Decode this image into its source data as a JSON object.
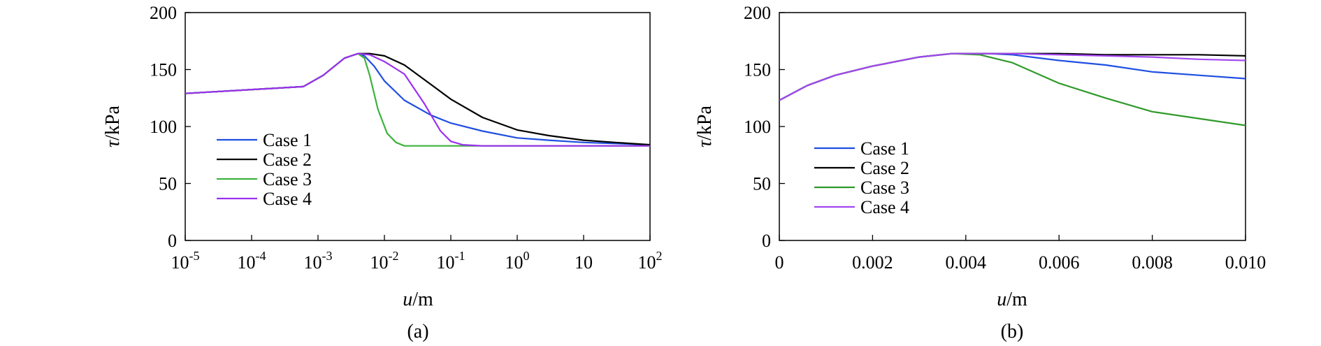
{
  "chart_data": [
    {
      "type": "line",
      "panel_label": "(a)",
      "xlabel": "u/m",
      "ylabel": "τ/kPa",
      "xscale": "log",
      "xlim": [
        1e-05,
        100
      ],
      "ylim": [
        0,
        200
      ],
      "yticks": [
        0,
        50,
        100,
        150,
        200
      ],
      "xticks": [
        {
          "value": 1e-05,
          "base": "10",
          "exp": "-5"
        },
        {
          "value": 0.0001,
          "base": "10",
          "exp": "-4"
        },
        {
          "value": 0.001,
          "base": "10",
          "exp": "-3"
        },
        {
          "value": 0.01,
          "base": "10",
          "exp": "-2"
        },
        {
          "value": 0.1,
          "base": "10",
          "exp": "-1"
        },
        {
          "value": 1,
          "base": "10",
          "exp": "0"
        },
        {
          "value": 10,
          "base": "10",
          "exp": ""
        },
        {
          "value": 100,
          "base": "10",
          "exp": "2"
        }
      ],
      "legend_position": "lower-left",
      "grid": false,
      "series": [
        {
          "name": "Case 1",
          "color": "#1f4fe0",
          "points": [
            [
              1e-05,
              129
            ],
            [
              0.0006,
              135
            ],
            [
              0.0012,
              145
            ],
            [
              0.0025,
              160
            ],
            [
              0.004,
              164
            ],
            [
              0.005,
              162
            ],
            [
              0.007,
              153
            ],
            [
              0.01,
              140
            ],
            [
              0.02,
              123
            ],
            [
              0.05,
              110
            ],
            [
              0.1,
              103
            ],
            [
              0.3,
              96
            ],
            [
              1,
              90
            ],
            [
              3,
              88
            ],
            [
              10,
              86
            ],
            [
              100,
              84
            ]
          ]
        },
        {
          "name": "Case 2",
          "color": "#000000",
          "points": [
            [
              1e-05,
              129
            ],
            [
              0.0006,
              135
            ],
            [
              0.0012,
              145
            ],
            [
              0.0025,
              160
            ],
            [
              0.004,
              164
            ],
            [
              0.006,
              164
            ],
            [
              0.01,
              162
            ],
            [
              0.02,
              154
            ],
            [
              0.05,
              137
            ],
            [
              0.1,
              124
            ],
            [
              0.3,
              108
            ],
            [
              1,
              97
            ],
            [
              3,
              92
            ],
            [
              10,
              88
            ],
            [
              30,
              86
            ],
            [
              100,
              84
            ]
          ]
        },
        {
          "name": "Case 3",
          "color": "#3cb33c",
          "points": [
            [
              1e-05,
              129
            ],
            [
              0.0006,
              135
            ],
            [
              0.0012,
              145
            ],
            [
              0.0025,
              160
            ],
            [
              0.004,
              164
            ],
            [
              0.005,
              160
            ],
            [
              0.006,
              145
            ],
            [
              0.008,
              115
            ],
            [
              0.011,
              94
            ],
            [
              0.015,
              86
            ],
            [
              0.02,
              83
            ],
            [
              0.05,
              83
            ],
            [
              0.1,
              83
            ],
            [
              100,
              83
            ]
          ]
        },
        {
          "name": "Case 4",
          "color": "#9b30f0",
          "points": [
            [
              1e-05,
              129
            ],
            [
              0.0006,
              135
            ],
            [
              0.0012,
              145
            ],
            [
              0.0025,
              160
            ],
            [
              0.004,
              164
            ],
            [
              0.006,
              163
            ],
            [
              0.01,
              157
            ],
            [
              0.02,
              146
            ],
            [
              0.04,
              120
            ],
            [
              0.07,
              96
            ],
            [
              0.1,
              87
            ],
            [
              0.15,
              84
            ],
            [
              0.3,
              83
            ],
            [
              100,
              83
            ]
          ]
        }
      ]
    },
    {
      "type": "line",
      "panel_label": "(b)",
      "xlabel": "u/m",
      "ylabel": "τ/kPa",
      "xscale": "linear",
      "xlim": [
        0,
        0.01
      ],
      "ylim": [
        0,
        200
      ],
      "yticks": [
        0,
        50,
        100,
        150,
        200
      ],
      "xticks": [
        {
          "value": 0,
          "label": "0"
        },
        {
          "value": 0.002,
          "label": "0.002"
        },
        {
          "value": 0.004,
          "label": "0.004"
        },
        {
          "value": 0.006,
          "label": "0.006"
        },
        {
          "value": 0.008,
          "label": "0.008"
        },
        {
          "value": 0.01,
          "label": "0.010"
        }
      ],
      "legend_position": "lower-left",
      "grid": false,
      "series": [
        {
          "name": "Case 1",
          "color": "#1f4fe0",
          "points": [
            [
              0,
              123
            ],
            [
              0.0006,
              136
            ],
            [
              0.0012,
              145
            ],
            [
              0.002,
              153
            ],
            [
              0.003,
              161
            ],
            [
              0.0037,
              164
            ],
            [
              0.0045,
              164
            ],
            [
              0.005,
              163
            ],
            [
              0.006,
              158
            ],
            [
              0.007,
              154
            ],
            [
              0.008,
              148
            ],
            [
              0.009,
              145
            ],
            [
              0.01,
              142
            ]
          ]
        },
        {
          "name": "Case 2",
          "color": "#000000",
          "points": [
            [
              0,
              123
            ],
            [
              0.0006,
              136
            ],
            [
              0.0012,
              145
            ],
            [
              0.002,
              153
            ],
            [
              0.003,
              161
            ],
            [
              0.0037,
              164
            ],
            [
              0.005,
              164
            ],
            [
              0.006,
              164
            ],
            [
              0.007,
              163
            ],
            [
              0.008,
              163
            ],
            [
              0.009,
              163
            ],
            [
              0.01,
              162
            ]
          ]
        },
        {
          "name": "Case 3",
          "color": "#2f9a2a",
          "points": [
            [
              0,
              123
            ],
            [
              0.0006,
              136
            ],
            [
              0.0012,
              145
            ],
            [
              0.002,
              153
            ],
            [
              0.003,
              161
            ],
            [
              0.0037,
              164
            ],
            [
              0.0043,
              163
            ],
            [
              0.005,
              156
            ],
            [
              0.006,
              138
            ],
            [
              0.007,
              125
            ],
            [
              0.008,
              113
            ],
            [
              0.009,
              107
            ],
            [
              0.01,
              101
            ]
          ]
        },
        {
          "name": "Case 4",
          "color": "#a346f0",
          "points": [
            [
              0,
              123
            ],
            [
              0.0006,
              136
            ],
            [
              0.0012,
              145
            ],
            [
              0.002,
              153
            ],
            [
              0.003,
              161
            ],
            [
              0.0037,
              164
            ],
            [
              0.005,
              164
            ],
            [
              0.006,
              163
            ],
            [
              0.007,
              162
            ],
            [
              0.008,
              161
            ],
            [
              0.009,
              159
            ],
            [
              0.01,
              158
            ]
          ]
        }
      ]
    }
  ]
}
